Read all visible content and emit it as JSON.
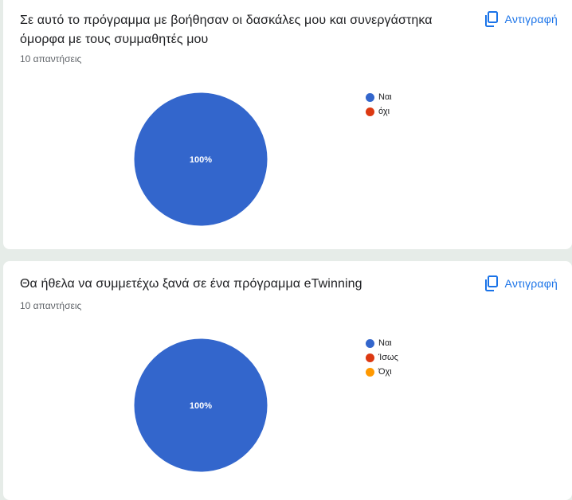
{
  "copy_label": "Αντιγραφή",
  "copy_icon": "copy-icon",
  "questions": [
    {
      "title": "Σε αυτό το πρόγραμμα με βοήθησαν οι δασκάλες μου και συνεργάστηκα όμορφα με τους συμμαθητές μου",
      "responses": "10 απαντήσεις"
    },
    {
      "title": "Θα ήθελα να συμμετέχω ξανά σε ένα πρόγραμμα eTwinning",
      "responses": "10 απαντήσεις"
    }
  ],
  "chart_data": [
    {
      "type": "pie",
      "title": "",
      "categories": [
        "Ναι",
        "όχι"
      ],
      "values": [
        10,
        0
      ],
      "colors": [
        "#3366cc",
        "#dc3912"
      ],
      "slice_labels": [
        "100%"
      ],
      "legend": "right"
    },
    {
      "type": "pie",
      "title": "",
      "categories": [
        "Ναι",
        "Ίσως",
        "Όχι"
      ],
      "values": [
        10,
        0,
        0
      ],
      "colors": [
        "#3366cc",
        "#dc3912",
        "#ff9900"
      ],
      "slice_labels": [
        "100%"
      ],
      "legend": "right"
    }
  ]
}
